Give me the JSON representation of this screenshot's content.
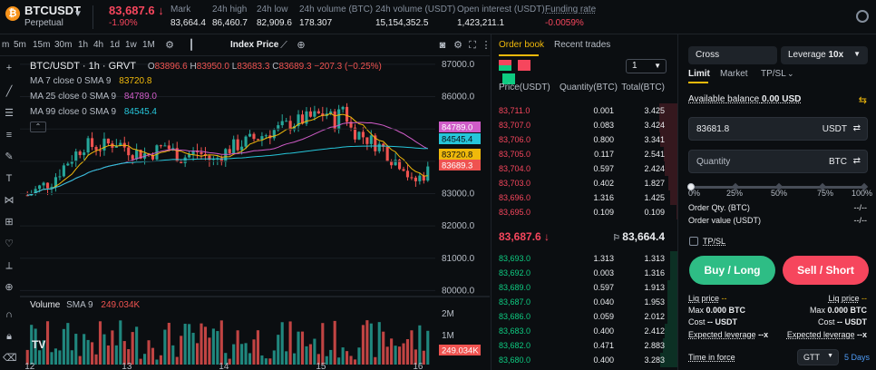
{
  "header": {
    "symbol": "BTCUSDT",
    "symbol_sub": "Perpetual",
    "last_price": "83,687.6 ↓",
    "last_change": "-1.90%",
    "stats": [
      {
        "label": "Mark",
        "value": "83,664.4"
      },
      {
        "label": "24h high",
        "value": "86,460.7"
      },
      {
        "label": "24h low",
        "value": "82,909.6"
      },
      {
        "label": "24h volume (BTC)",
        "value": "178.307"
      },
      {
        "label": "24h volume (USDT)",
        "value": "15,154,352.5"
      },
      {
        "label": "Open interest (USDT)",
        "value": "1,423,211.1"
      },
      {
        "label": "Funding rate",
        "value": "-0.0059%"
      }
    ]
  },
  "toolbar": {
    "timeframes": [
      "m",
      "5m",
      "15m",
      "30m",
      "1h",
      "4h",
      "1d",
      "1w",
      "1M"
    ],
    "index_price": "Index Price"
  },
  "chart": {
    "title": "BTC/USDT · 1h · GRVT",
    "ohlc": {
      "o_label": "O",
      "o": "83896.6",
      "h_label": "H",
      "h": "83950.0",
      "l_label": "L",
      "l": "83683.3",
      "c_label": "C",
      "c": "83689.3",
      "chg": "−207.3 (−0.25%)"
    },
    "ma7": {
      "label": "MA 7 close 0 SMA 9",
      "value": "83720.8"
    },
    "ma25": {
      "label": "MA 25 close 0 SMA 9",
      "value": "84789.0"
    },
    "ma99": {
      "label": "MA 99 close 0 SMA 9",
      "value": "84545.4"
    },
    "volume": {
      "label": "Volume",
      "sma": "SMA 9",
      "value": "249.034K"
    },
    "price_tags": {
      "ma25": "84789.0",
      "ma99": "84545.4",
      "ma7": "83720.8",
      "last": "83689.3",
      "vol": "249.034K"
    },
    "colors": {
      "up": "#26a69a",
      "down": "#ef5350",
      "ma7": "#f0b90b",
      "ma25": "#d05cc8",
      "ma99": "#26c6da"
    }
  },
  "chart_data": {
    "type": "candlestick",
    "y_ticks": [
      "87000.0",
      "86000.0",
      "85000.0",
      "84000.0",
      "83000.0",
      "82000.0",
      "81000.0",
      "80000.0"
    ],
    "ylim": [
      79900,
      87250
    ],
    "vol_ticks": [
      "2M",
      "1M"
    ],
    "x_ticks": [
      {
        "label": "12",
        "i": 0
      },
      {
        "label": "13",
        "i": 24
      },
      {
        "label": "14",
        "i": 48
      },
      {
        "label": "15",
        "i": 72
      },
      {
        "label": "16",
        "i": 96
      }
    ],
    "candles": []
  },
  "orderbook": {
    "tab_active": "Order book",
    "tab_inactive": "Recent trades",
    "depth_value": "1",
    "headers": {
      "price": "Price(USDT)",
      "qty": "Quantity(BTC)",
      "total": "Total(BTC)"
    },
    "asks": [
      {
        "price": "83,711.0",
        "qty": "0.001",
        "total": "3.425"
      },
      {
        "price": "83,707.0",
        "qty": "0.083",
        "total": "3.424"
      },
      {
        "price": "83,706.0",
        "qty": "0.800",
        "total": "3.341"
      },
      {
        "price": "83,705.0",
        "qty": "0.117",
        "total": "2.541"
      },
      {
        "price": "83,704.0",
        "qty": "0.597",
        "total": "2.424"
      },
      {
        "price": "83,703.0",
        "qty": "0.402",
        "total": "1.827"
      },
      {
        "price": "83,696.0",
        "qty": "1.316",
        "total": "1.425"
      },
      {
        "price": "83,695.0",
        "qty": "0.109",
        "total": "0.109"
      }
    ],
    "mid_price": "83,687.6 ↓",
    "mark": "83,664.4",
    "bids": [
      {
        "price": "83,693.0",
        "qty": "1.313",
        "total": "1.313"
      },
      {
        "price": "83,692.0",
        "qty": "0.003",
        "total": "1.316"
      },
      {
        "price": "83,689.0",
        "qty": "0.597",
        "total": "1.913"
      },
      {
        "price": "83,687.0",
        "qty": "0.040",
        "total": "1.953"
      },
      {
        "price": "83,686.0",
        "qty": "0.059",
        "total": "2.012"
      },
      {
        "price": "83,683.0",
        "qty": "0.400",
        "total": "2.412"
      },
      {
        "price": "83,682.0",
        "qty": "0.471",
        "total": "2.883"
      },
      {
        "price": "83,680.0",
        "qty": "0.400",
        "total": "3.283"
      }
    ]
  },
  "trade": {
    "margin_mode": "Cross",
    "leverage_label": "Leverage",
    "leverage_value": "10x",
    "tabs": [
      "Limit",
      "Market",
      "TP/SL"
    ],
    "available_label": "Available balance",
    "available_value": "0.00 USD",
    "price_value": "83681.8",
    "price_unit": "USDT",
    "qty_placeholder": "Quantity",
    "qty_unit": "BTC",
    "slider_marks": [
      "0%",
      "25%",
      "50%",
      "75%",
      "100%"
    ],
    "order_qty_label": "Order Qty. (BTC)",
    "order_qty_value": "--/--",
    "order_value_label": "Order value (USDT)",
    "order_value_value": "--/--",
    "tpsl": "TP/SL",
    "buy": "Buy / Long",
    "sell": "Sell / Short",
    "liq_label": "Liq price",
    "liq_value": "--",
    "max_label": "Max",
    "max_value": "0.000 BTC",
    "cost_label": "Cost",
    "cost_value": "-- USDT",
    "exp_label": "Expected leverage",
    "exp_value": "--x",
    "tif_label": "Time in force",
    "tif_value": "GTT",
    "tif_days": "5 Days"
  }
}
